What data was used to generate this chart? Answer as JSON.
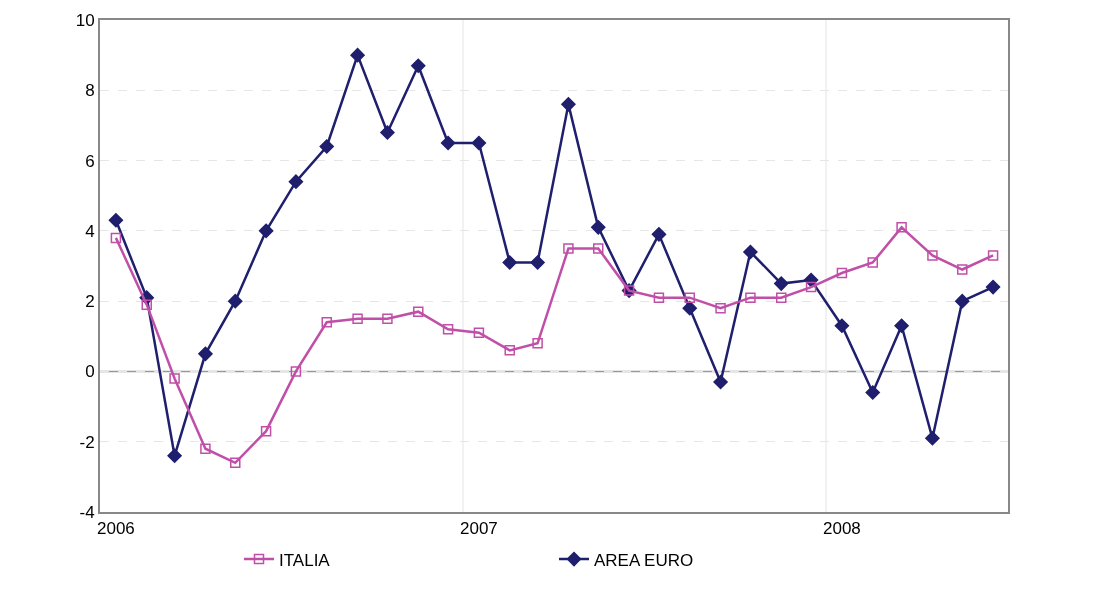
{
  "chart_data": {
    "type": "line",
    "x": [
      "2006-01",
      "2006-02",
      "2006-03",
      "2006-04",
      "2006-05",
      "2006-06",
      "2006-07",
      "2006-08",
      "2006-09",
      "2006-10",
      "2006-11",
      "2006-12",
      "2007-01",
      "2007-02",
      "2007-03",
      "2007-04",
      "2007-05",
      "2007-06",
      "2007-07",
      "2007-08",
      "2007-09",
      "2007-10",
      "2007-11",
      "2007-12",
      "2008-01",
      "2008-02",
      "2008-03",
      "2008-04",
      "2008-05",
      "2008-06"
    ],
    "series": [
      {
        "name": "ITALIA",
        "color": "#c04fa8",
        "marker": "square",
        "values": [
          3.8,
          1.9,
          -0.2,
          -2.2,
          -2.6,
          -1.7,
          0.0,
          1.4,
          1.5,
          1.5,
          1.7,
          1.2,
          1.1,
          0.6,
          0.8,
          3.5,
          3.5,
          2.3,
          2.1,
          2.1,
          1.8,
          2.1,
          2.1,
          2.4,
          2.8,
          3.1,
          4.1,
          3.3,
          2.9,
          3.3
        ]
      },
      {
        "name": "AREA EURO",
        "color": "#1f1f6e",
        "marker": "diamond",
        "values": [
          4.3,
          2.1,
          -2.4,
          0.5,
          2.0,
          4.0,
          5.4,
          6.4,
          9.0,
          6.8,
          8.7,
          6.5,
          6.5,
          3.1,
          3.1,
          7.6,
          4.1,
          2.3,
          3.9,
          1.8,
          -0.3,
          3.4,
          2.5,
          2.6,
          1.3,
          -0.6,
          1.3,
          -1.9,
          2.0,
          2.4
        ]
      }
    ],
    "xlim": [
      "2005-12-16",
      "2008-06-16"
    ],
    "xticks": [
      {
        "value": "2006-01-01",
        "label": "2006"
      },
      {
        "value": "2007-01-01",
        "label": "2007"
      },
      {
        "value": "2008-01-01",
        "label": "2008"
      }
    ],
    "ylim": [
      -4,
      10
    ],
    "yticks": [
      -4,
      -2,
      0,
      2,
      4,
      6,
      8,
      10
    ],
    "ref_lines": [
      {
        "axis": "y",
        "value": 0,
        "color": "#999999",
        "line_style": "solid"
      },
      {
        "axis": "x",
        "value": "2006-12-16",
        "color": "#e4e4e4",
        "line_style": "solid"
      },
      {
        "axis": "x",
        "value": "2007-12-16",
        "color": "#e4e4e4",
        "line_style": "solid"
      }
    ],
    "grid": "y",
    "legend": "bottom",
    "line_style": "solid"
  }
}
